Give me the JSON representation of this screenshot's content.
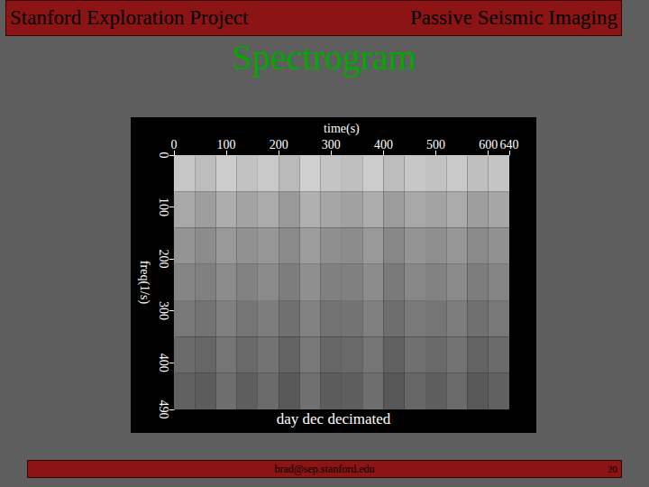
{
  "slide": {
    "header_left": "Stanford Exploration Project",
    "header_right": "Passive Seismic Imaging",
    "heading": "Spectrogram",
    "footer": "brad@sep.stanford.edu",
    "page_number": "20"
  },
  "chart_data": {
    "type": "heatmap",
    "title": "day dec decimated",
    "xlabel": "time(s)",
    "ylabel": "freq(1/s)",
    "xlim": [
      0,
      640
    ],
    "ylim": [
      0,
      490
    ],
    "xticks": [
      0,
      100,
      200,
      300,
      400,
      500,
      600
    ],
    "yticks": [
      0,
      100,
      200,
      300,
      400
    ],
    "grid": false,
    "x_edges": [
      0,
      40,
      80,
      120,
      160,
      200,
      240,
      280,
      320,
      360,
      400,
      440,
      480,
      520,
      560,
      600,
      640
    ],
    "y_edges": [
      0,
      70,
      140,
      210,
      280,
      350,
      420,
      490
    ],
    "zlim": [
      0,
      1
    ],
    "cells": [
      [
        0.78,
        0.74,
        0.8,
        0.76,
        0.79,
        0.73,
        0.81,
        0.77,
        0.75,
        0.8,
        0.74,
        0.78,
        0.76,
        0.79,
        0.75,
        0.77
      ],
      [
        0.66,
        0.62,
        0.68,
        0.64,
        0.67,
        0.6,
        0.69,
        0.65,
        0.63,
        0.68,
        0.61,
        0.66,
        0.64,
        0.67,
        0.62,
        0.65
      ],
      [
        0.58,
        0.55,
        0.6,
        0.57,
        0.59,
        0.54,
        0.61,
        0.56,
        0.55,
        0.6,
        0.53,
        0.58,
        0.56,
        0.59,
        0.54,
        0.57
      ],
      [
        0.52,
        0.5,
        0.55,
        0.51,
        0.54,
        0.49,
        0.56,
        0.5,
        0.5,
        0.55,
        0.48,
        0.53,
        0.51,
        0.54,
        0.49,
        0.52
      ],
      [
        0.47,
        0.45,
        0.5,
        0.46,
        0.49,
        0.44,
        0.51,
        0.45,
        0.45,
        0.5,
        0.43,
        0.48,
        0.46,
        0.49,
        0.44,
        0.47
      ],
      [
        0.42,
        0.4,
        0.46,
        0.41,
        0.45,
        0.39,
        0.47,
        0.4,
        0.41,
        0.46,
        0.38,
        0.44,
        0.41,
        0.45,
        0.39,
        0.42
      ],
      [
        0.38,
        0.36,
        0.43,
        0.37,
        0.42,
        0.35,
        0.44,
        0.36,
        0.37,
        0.43,
        0.34,
        0.4,
        0.37,
        0.42,
        0.35,
        0.38
      ]
    ]
  }
}
